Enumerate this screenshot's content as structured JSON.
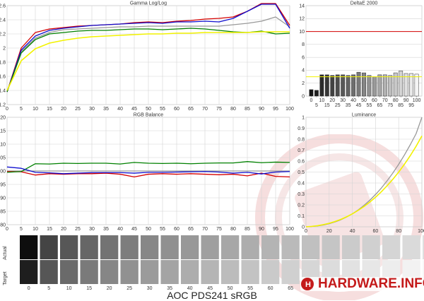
{
  "caption": "AOC PDS241 sRGB",
  "logo_text": "HARDWARE.INFO",
  "colors": {
    "red": "#d40000",
    "green": "#008000",
    "blue": "#1010d0",
    "gray": "#999999",
    "yellow": "#f2f200",
    "accent": "#c41a1a"
  },
  "chart_data": [
    {
      "type": "line",
      "title": "Gamma Log/Log",
      "x": [
        0,
        5,
        10,
        15,
        20,
        25,
        30,
        35,
        40,
        45,
        50,
        55,
        60,
        65,
        70,
        75,
        80,
        85,
        90,
        95,
        100
      ],
      "xlim": [
        0,
        100
      ],
      "ylim": [
        1.2,
        2.6
      ],
      "yticks": [
        1.2,
        1.4,
        1.6,
        1.8,
        2,
        2.2,
        2.4,
        2.6
      ],
      "xticks": [
        0,
        5,
        10,
        15,
        20,
        25,
        30,
        35,
        40,
        45,
        50,
        55,
        60,
        65,
        70,
        75,
        80,
        85,
        90,
        95,
        100
      ],
      "series": [
        {
          "color": "gray",
          "values": [
            1.38,
            1.95,
            2.14,
            2.22,
            2.26,
            2.27,
            2.28,
            2.29,
            2.3,
            2.3,
            2.31,
            2.31,
            2.31,
            2.31,
            2.31,
            2.31,
            2.33,
            2.35,
            2.38,
            2.44,
            2.3
          ]
        },
        {
          "color": "red",
          "values": [
            1.38,
            2.0,
            2.22,
            2.27,
            2.29,
            2.31,
            2.32,
            2.33,
            2.34,
            2.36,
            2.37,
            2.36,
            2.38,
            2.39,
            2.41,
            2.42,
            2.44,
            2.52,
            2.63,
            2.63,
            2.32
          ]
        },
        {
          "color": "blue",
          "values": [
            1.38,
            1.97,
            2.17,
            2.25,
            2.28,
            2.3,
            2.32,
            2.33,
            2.34,
            2.35,
            2.36,
            2.35,
            2.37,
            2.37,
            2.38,
            2.37,
            2.42,
            2.52,
            2.62,
            2.62,
            2.28
          ]
        },
        {
          "color": "green",
          "values": [
            1.38,
            1.93,
            2.12,
            2.2,
            2.22,
            2.24,
            2.25,
            2.25,
            2.26,
            2.27,
            2.27,
            2.26,
            2.27,
            2.28,
            2.27,
            2.25,
            2.23,
            2.22,
            2.24,
            2.2,
            2.21
          ]
        },
        {
          "color": "yellow",
          "values": [
            1.4,
            1.82,
            1.99,
            2.07,
            2.11,
            2.14,
            2.16,
            2.17,
            2.18,
            2.19,
            2.2,
            2.2,
            2.21,
            2.21,
            2.22,
            2.22,
            2.22,
            2.22,
            2.23,
            2.23,
            2.23
          ]
        }
      ]
    },
    {
      "type": "bar",
      "title": "DeltaE 2000",
      "x": [
        0,
        5,
        10,
        15,
        20,
        25,
        30,
        35,
        40,
        45,
        50,
        55,
        60,
        65,
        70,
        75,
        80,
        85,
        90,
        95,
        100
      ],
      "xticks": [
        0,
        10,
        20,
        30,
        40,
        50,
        60,
        70,
        80,
        90,
        100
      ],
      "xticks_minor": [
        5,
        15,
        25,
        35,
        45,
        55,
        65,
        75,
        85,
        95
      ],
      "ylim": [
        0,
        14
      ],
      "yticks": [
        0,
        2,
        4,
        6,
        8,
        10,
        12,
        14
      ],
      "threshold_red": 10,
      "threshold_yellow": 3,
      "values": [
        1.0,
        0.9,
        3.3,
        3.3,
        3.2,
        3.3,
        3.3,
        3.2,
        3.3,
        3.7,
        3.6,
        3.2,
        3.0,
        3.3,
        3.3,
        3.2,
        3.6,
        3.9,
        3.5,
        3.5,
        3.4
      ]
    },
    {
      "type": "line",
      "title": "RGB Balance",
      "x": [
        0,
        5,
        10,
        15,
        20,
        25,
        30,
        35,
        40,
        45,
        50,
        55,
        60,
        65,
        70,
        75,
        80,
        85,
        90,
        95,
        100
      ],
      "xlim": [
        0,
        100
      ],
      "ylim": [
        80,
        120
      ],
      "yticks": [
        80,
        85,
        90,
        95,
        100,
        105,
        110,
        115,
        120
      ],
      "xticks": [
        0,
        5,
        10,
        15,
        20,
        25,
        30,
        35,
        40,
        45,
        50,
        55,
        60,
        65,
        70,
        75,
        80,
        85,
        90,
        95,
        100
      ],
      "series": [
        {
          "color": "gray",
          "values": [
            100,
            100,
            100,
            100,
            100,
            100,
            100,
            100,
            100,
            100,
            100,
            100,
            100,
            100,
            100,
            100,
            100,
            100,
            100,
            100,
            100
          ]
        },
        {
          "color": "red",
          "values": [
            99.8,
            99.7,
            98.5,
            99.0,
            98.8,
            99.0,
            99.0,
            99.2,
            98.8,
            97.8,
            98.8,
            99.0,
            98.8,
            99.0,
            98.8,
            98.6,
            98.8,
            98.2,
            99.2,
            98.0,
            97.8
          ]
        },
        {
          "color": "green",
          "values": [
            99.5,
            99.8,
            102.7,
            102.6,
            102.9,
            102.8,
            102.9,
            102.9,
            102.6,
            103.2,
            102.9,
            102.8,
            102.9,
            102.7,
            102.9,
            103.0,
            103.0,
            103.5,
            103.1,
            103.3,
            103.2
          ]
        },
        {
          "color": "blue",
          "values": [
            101.5,
            101.0,
            99.5,
            99.3,
            99.0,
            99.2,
            99.4,
            99.4,
            99.4,
            99.2,
            99.5,
            99.5,
            99.6,
            99.7,
            99.8,
            99.6,
            99.2,
            99.5,
            98.9,
            99.6,
            99.8
          ]
        }
      ]
    },
    {
      "type": "line",
      "title": "Luminance",
      "x": [
        0,
        5,
        10,
        15,
        20,
        25,
        30,
        35,
        40,
        45,
        50,
        55,
        60,
        65,
        70,
        75,
        80,
        85,
        90,
        95,
        100
      ],
      "xlim": [
        0,
        100
      ],
      "ylim": [
        0,
        1
      ],
      "yticks": [
        0,
        0.1,
        0.2,
        0.3,
        0.4,
        0.5,
        0.6,
        0.7,
        0.8,
        0.9,
        1
      ],
      "xticks": [
        0,
        20,
        40,
        60,
        80,
        100
      ],
      "series": [
        {
          "color": "gray",
          "values": [
            0,
            0.003,
            0.008,
            0.016,
            0.028,
            0.044,
            0.064,
            0.089,
            0.119,
            0.154,
            0.195,
            0.242,
            0.295,
            0.354,
            0.42,
            0.492,
            0.571,
            0.657,
            0.75,
            0.85,
            1
          ]
        },
        {
          "color": "yellow",
          "values": [
            0,
            0.004,
            0.01,
            0.02,
            0.032,
            0.048,
            0.068,
            0.091,
            0.118,
            0.15,
            0.185,
            0.225,
            0.27,
            0.32,
            0.375,
            0.435,
            0.5,
            0.572,
            0.65,
            0.735,
            0.83
          ]
        }
      ]
    }
  ],
  "strip": {
    "row_labels": [
      "Actual",
      "Target"
    ],
    "steps": [
      0,
      5,
      10,
      15,
      20,
      25,
      30,
      35,
      40,
      45,
      50,
      55,
      60,
      65,
      70,
      75,
      80,
      85,
      90,
      95,
      100
    ],
    "labels": [
      "0",
      "5",
      "10",
      "15",
      "20",
      "25",
      "30",
      "35",
      "40",
      "45",
      "50",
      "55",
      "60",
      "65",
      "70",
      "",
      "",
      "",
      "",
      "",
      ""
    ]
  }
}
